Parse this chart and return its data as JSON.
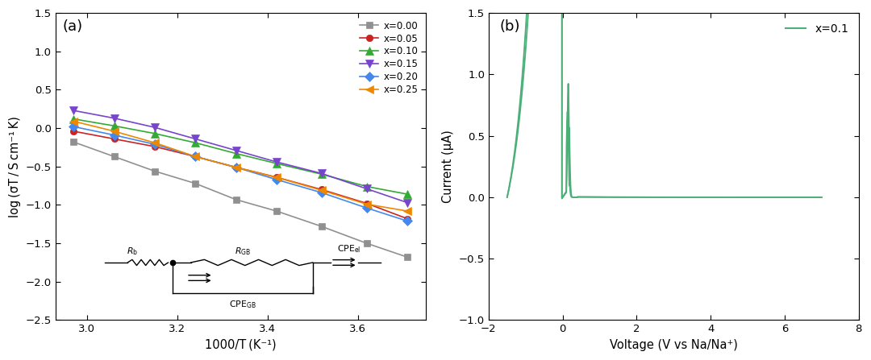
{
  "panel_a": {
    "xlabel": "1000/T (K⁻¹)",
    "ylabel": "log (σT / S cm⁻¹ K)",
    "xlim": [
      2.93,
      3.75
    ],
    "ylim": [
      -2.5,
      1.5
    ],
    "xticks": [
      3.0,
      3.2,
      3.4,
      3.6
    ],
    "yticks": [
      -2.5,
      -2.0,
      -1.5,
      -1.0,
      -0.5,
      0.0,
      0.5,
      1.0,
      1.5
    ],
    "series": [
      {
        "label": "x=0.00",
        "color": "#909090",
        "marker": "s",
        "x": [
          2.97,
          3.06,
          3.15,
          3.24,
          3.33,
          3.42,
          3.52,
          3.62,
          3.71
        ],
        "y": [
          -0.18,
          -0.37,
          -0.56,
          -0.72,
          -0.93,
          -1.08,
          -1.28,
          -1.5,
          -1.68
        ]
      },
      {
        "label": "x=0.05",
        "color": "#cc2222",
        "marker": "o",
        "x": [
          2.97,
          3.06,
          3.15,
          3.24,
          3.33,
          3.42,
          3.52,
          3.62,
          3.71
        ],
        "y": [
          -0.04,
          -0.14,
          -0.24,
          -0.37,
          -0.51,
          -0.64,
          -0.8,
          -0.98,
          -1.18
        ]
      },
      {
        "label": "x=0.10",
        "color": "#33aa33",
        "marker": "^",
        "x": [
          2.97,
          3.06,
          3.15,
          3.24,
          3.33,
          3.42,
          3.52,
          3.62,
          3.71
        ],
        "y": [
          0.12,
          0.03,
          -0.07,
          -0.19,
          -0.33,
          -0.46,
          -0.6,
          -0.76,
          -0.86
        ]
      },
      {
        "label": "x=0.15",
        "color": "#7744cc",
        "marker": "v",
        "x": [
          2.97,
          3.06,
          3.15,
          3.24,
          3.33,
          3.42,
          3.52,
          3.62,
          3.71
        ],
        "y": [
          0.23,
          0.13,
          0.01,
          -0.14,
          -0.29,
          -0.44,
          -0.59,
          -0.79,
          -0.97
        ]
      },
      {
        "label": "x=0.20",
        "color": "#4488ee",
        "marker": "D",
        "x": [
          2.97,
          3.06,
          3.15,
          3.24,
          3.33,
          3.42,
          3.52,
          3.62,
          3.71
        ],
        "y": [
          0.02,
          -0.09,
          -0.21,
          -0.37,
          -0.51,
          -0.67,
          -0.84,
          -1.04,
          -1.21
        ]
      },
      {
        "label": "x=0.25",
        "color": "#ee8800",
        "marker": "<",
        "x": [
          2.97,
          3.06,
          3.15,
          3.24,
          3.33,
          3.42,
          3.52,
          3.62,
          3.71
        ],
        "y": [
          0.09,
          -0.04,
          -0.19,
          -0.37,
          -0.51,
          -0.64,
          -0.81,
          -0.99,
          -1.08
        ]
      }
    ]
  },
  "panel_b": {
    "xlabel": "Voltage (V vs Na/Na⁺)",
    "ylabel": "Current (μA)",
    "xlim": [
      -2,
      8
    ],
    "ylim": [
      -1.0,
      1.5
    ],
    "xticks": [
      -2,
      0,
      2,
      4,
      6,
      8
    ],
    "yticks": [
      -1.0,
      -0.5,
      0.0,
      0.5,
      1.0,
      1.5
    ],
    "legend_label": "x=0.1",
    "color": "#4caf78"
  }
}
